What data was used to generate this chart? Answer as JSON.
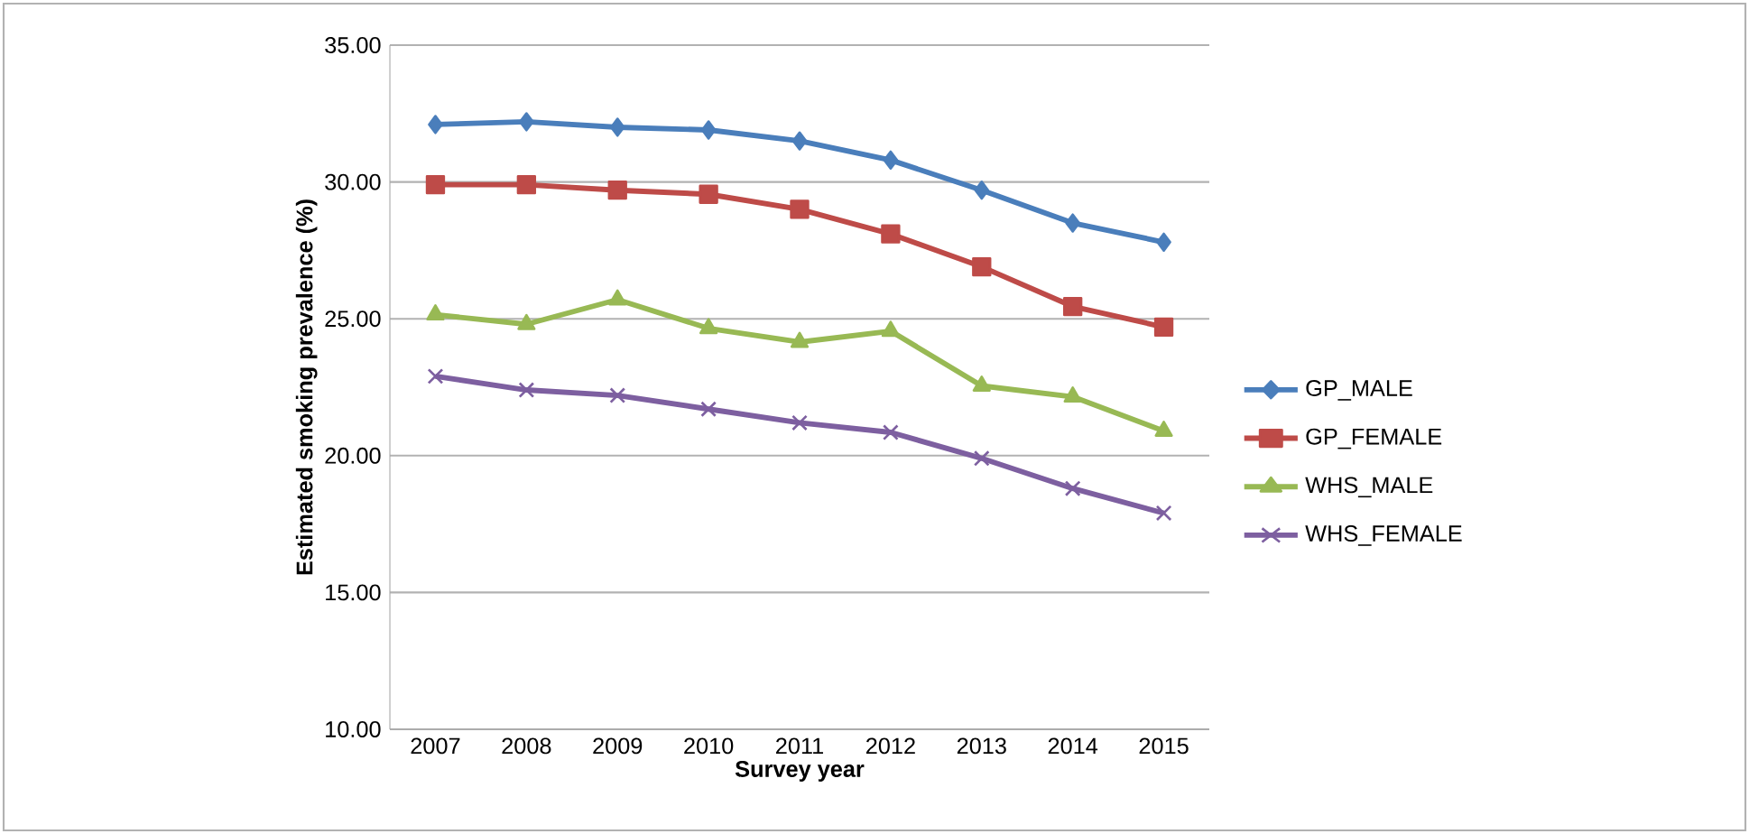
{
  "chart_data": {
    "type": "line",
    "xlabel": "Survey year",
    "ylabel": "Estimated smoking prevalence (%)",
    "categories": [
      "2007",
      "2008",
      "2009",
      "2010",
      "2011",
      "2012",
      "2013",
      "2014",
      "2015"
    ],
    "ylim": [
      10,
      35
    ],
    "yticks": [
      {
        "value": 10,
        "label": "10.00"
      },
      {
        "value": 15,
        "label": "15.00"
      },
      {
        "value": 20,
        "label": "20.00"
      },
      {
        "value": 25,
        "label": "25.00"
      },
      {
        "value": 30,
        "label": "30.00"
      },
      {
        "value": 35,
        "label": "35.00"
      }
    ],
    "grid": "y",
    "legend": "right",
    "line_style": "solid",
    "series": [
      {
        "name": "GP_MALE",
        "color": "#4a7ebb",
        "marker": "diamond",
        "values": [
          32.1,
          32.2,
          32.0,
          31.9,
          31.5,
          30.8,
          29.7,
          28.5,
          27.8
        ]
      },
      {
        "name": "GP_FEMALE",
        "color": "#be4b48",
        "marker": "square",
        "values": [
          29.9,
          29.9,
          29.7,
          29.55,
          29.0,
          28.1,
          26.9,
          25.45,
          24.7
        ]
      },
      {
        "name": "WHS_MALE",
        "color": "#98b954",
        "marker": "triangle",
        "values": [
          25.15,
          24.8,
          25.7,
          24.65,
          24.15,
          24.55,
          22.55,
          22.15,
          20.9
        ]
      },
      {
        "name": "WHS_FEMALE",
        "color": "#7d5fa0",
        "marker": "cross",
        "values": [
          22.9,
          22.4,
          22.2,
          21.7,
          21.2,
          20.85,
          19.9,
          18.8,
          17.9
        ]
      }
    ]
  }
}
